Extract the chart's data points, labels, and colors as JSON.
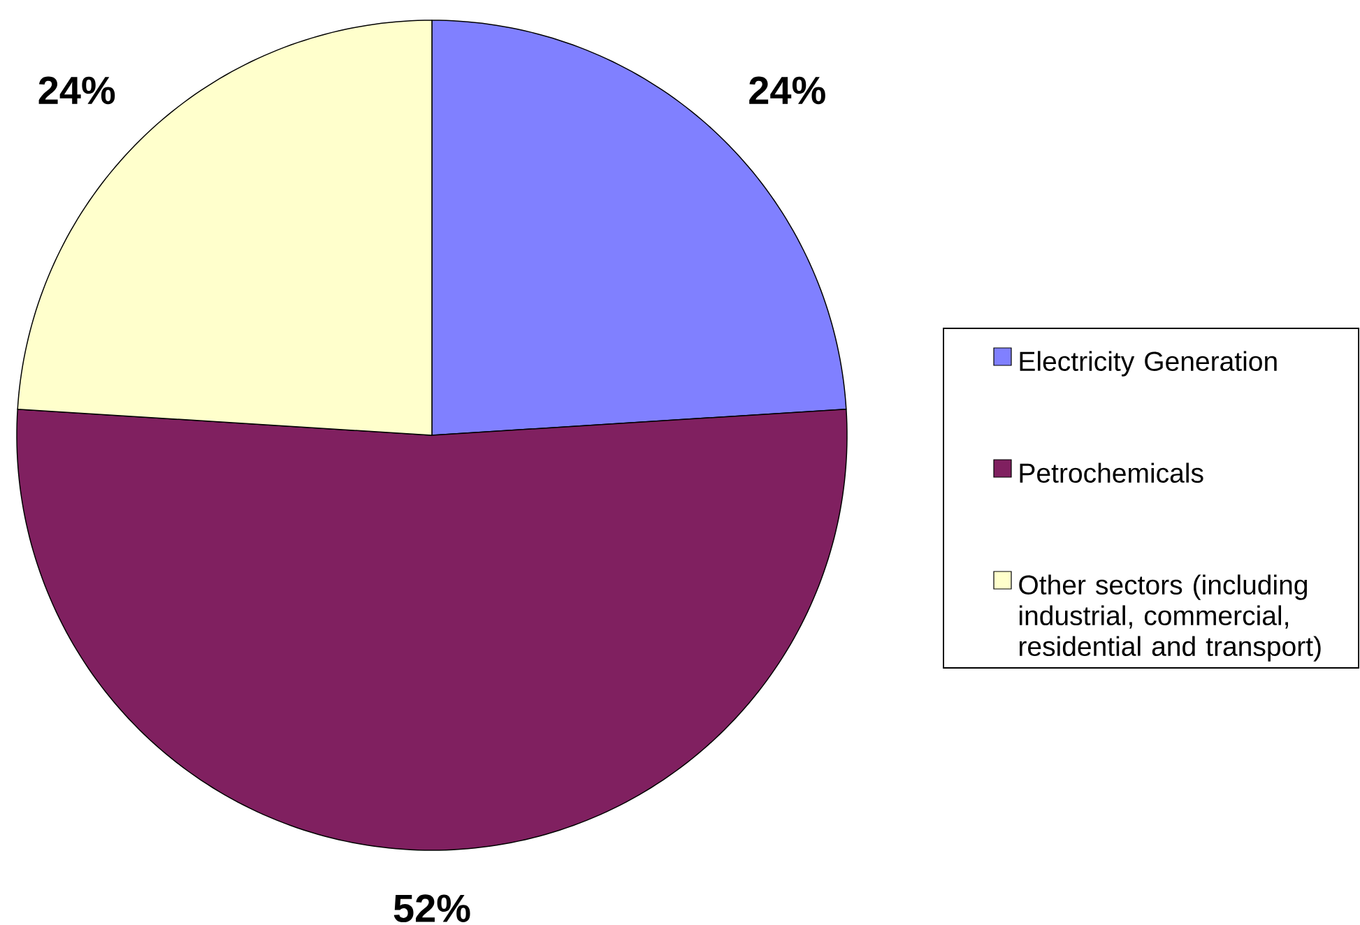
{
  "chart_data": {
    "type": "pie",
    "categories": [
      "Electricity Generation",
      "Petrochemicals",
      "Other sectors (including industrial, commercial, residential and transport)"
    ],
    "values": [
      24,
      52,
      24
    ],
    "colors": [
      "#8080FF",
      "#802060",
      "#FFFFCC"
    ],
    "value_labels": [
      "24%",
      "52%",
      "24%"
    ],
    "legend": "right"
  }
}
